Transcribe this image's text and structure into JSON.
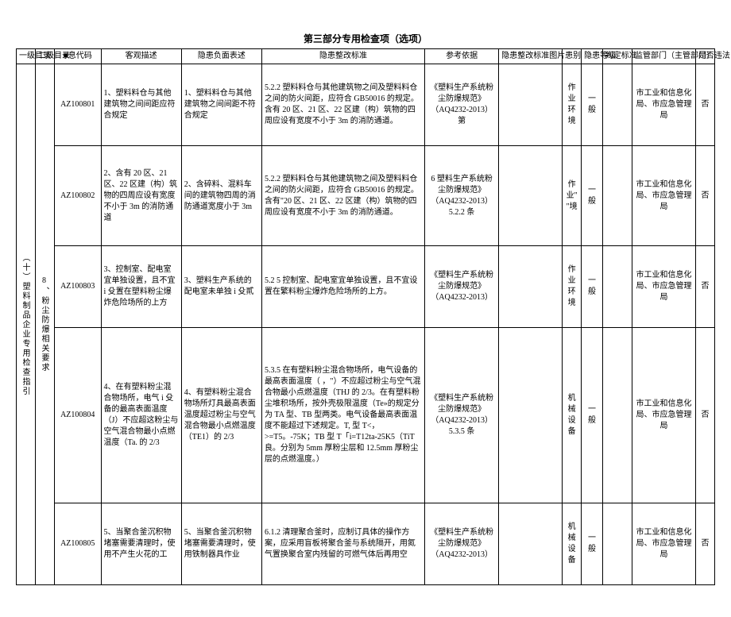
{
  "title": "第三部分专用检查项（选项）",
  "headers": {
    "dir1": "一级目录",
    "dir2": "二级目录",
    "code": "■息代码",
    "obj": "客观描述",
    "neg": "隐患负面表述",
    "std": "隐患整改标准",
    "ref": "参考依据",
    "img": "隐患整改标准图片",
    "loc": "患别",
    "lvl": "隐患等级",
    "jud": "判定标准",
    "dept": "监管部门（主管部门）",
    "law": "是否违法"
  },
  "dir1_label": "（十）塑料制品企业专用检查指引",
  "dir2_label": "8、粉尘防爆相关要求",
  "rows": [
    {
      "code": "AZ100801",
      "obj": "1、塑料料仓与其他建筑物之间间距应符合规定",
      "neg": "1、塑料料仓与其他建筑物之间间距不符合规定",
      "std": "5.2.2 塑料料仓与其他建筑物之间及塑料料仓之间的防火间距，应符合 GB50016 的规定。含有 20 区、21 区、22 区建（构）筑物的四周应设有宽度不小于 3m 的消防通道。",
      "ref": "《塑料生产系统粉尘防爆规范》（AQ4232-2013）第",
      "loc": "作业环境",
      "lvl": "一般",
      "jud": "",
      "dept": "市工业和信息化局、市应急管理局",
      "law": "否"
    },
    {
      "code": "AZ100802",
      "obj": "2、含有 20 区、21 区、22 区建（构）筑物的四周应设有宽度不小于 3m 的消防通道",
      "neg": "2、含碎料、混料车间的建筑物四周的消防通道宽度小于 3m",
      "std": "5.2.2 塑料料仓与其他建筑物之间及塑料料仓之间的防火间距，应符合 GB50016 的规定。含有\"20 区、21 区、22 区建（构）筑物的四周应设有宽度不小于 3m 的消防通道。",
      "ref": "6 塑料生产系统粉尘防爆规范》（AQ4232-2013）5.2.2 条",
      "loc": "作业\"\"境",
      "lvl": "一般",
      "jud": "",
      "dept": "市工业和信息化局、市应急管理局",
      "law": "否"
    },
    {
      "code": "AZ100803",
      "obj": "3、控制室、配电室宜单独设置，且不宜 i 殳置在塑料粉尘爆炸危险场所的上方",
      "neg": "3、塑料生产系统的配电室未单独 i 殳貳",
      "std": "5.2 5 控制室、配电室宜单独设置，且不宜设置在繁料粉尘爆炸危险场所的上方。",
      "ref": "《塑料生产系统粉尘防爆规范》（AQ4232-2013）",
      "loc": "作业环境",
      "lvl": "一般",
      "jud": "",
      "dept": "市工业和信息化局、市应急管理局",
      "law": "否"
    },
    {
      "code": "AZ100804",
      "obj": "4、在有塑料粉尘混合物场所，电气 i 殳备的最高表面温度（J）不应超这粉尘与空气混合物最小点燃温度（Ta. 的 2/3",
      "neg": "4、有塑料粉尘混合物场所灯具最高表面温度超过粉尘与空气混合物最小点燃温度（TE1）的 2/3",
      "std": "5.3.5 在有塑料粉尘混合物场所，电气设备的最高表面温度（ ，\"）不应超过粉尘与空气混合物最小点燃温度（THJ 的 2/3。在有塑料粉尘堆积场所，按外壳极限温度（Te»的规定分为 TA 型、TB 型两类。电气设备最高表面温度不能超过下述规定。T, 型 T<，>=T5。-75K；TB 型 T「i=T12ta-25K5（TiT 良。分别为 5mm 厚粉尘层和 12.5mm 厚粉尘层的点燃温度。）",
      "ref": "《塑料生产系统粉尘防爆规范》（AQ4232-2013）5.3.5 条",
      "loc": "机械设备",
      "lvl": "一般",
      "jud": "",
      "dept": "市工业和信息化局、市应急管理局",
      "law": "否"
    },
    {
      "code": "AZ100805",
      "obj": "5、当聚合釜沉积物堵塞需要清理时，使用不产生火花的工",
      "neg": "5、当聚合釜沉积物堵塞需要清理时，使用铁制器具作业",
      "std": "6.1.2 清理聚合釜时，应制订具体的操作方案，应采用盲板将聚合釜与系统隔开，用氮气置换聚合室内残留的可燃气体后再用空",
      "ref": "《塑料生产系统粉尘防爆规范》（AQ4232-2013）",
      "loc": "机械设备",
      "lvl": "一般",
      "jud": "",
      "dept": "市工业和信息化局、市应急管理局",
      "law": "否"
    }
  ]
}
